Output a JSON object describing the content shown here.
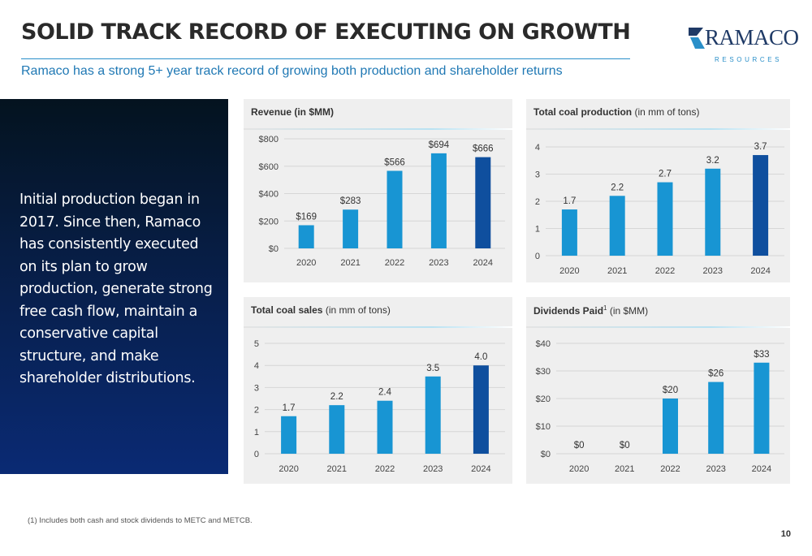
{
  "header": {
    "title": "SOLID TRACK RECORD OF EXECUTING ON GROWTH",
    "subtitle": "Ramaco has a strong 5+ year track record of growing both production and shareholder returns"
  },
  "logo": {
    "word": "RAMACO",
    "sub": "RESOURCES"
  },
  "left_panel": {
    "text": "Initial production began in 2017. Since then, Ramaco has consistently executed on its plan to grow production, generate strong free cash flow, maintain a conservative capital structure, and make shareholder distributions."
  },
  "colors": {
    "bar": "#1895d3",
    "bar_highlight": "#0f4f9e"
  },
  "chart_data": [
    {
      "id": "revenue",
      "type": "bar",
      "title_bold": "Revenue (in $MM)",
      "title_rest": "",
      "title_sup": "",
      "categories": [
        "2020",
        "2021",
        "2022",
        "2023",
        "2024"
      ],
      "values": [
        169,
        283,
        566,
        694,
        666
      ],
      "value_labels": [
        "$169",
        "$283",
        "$566",
        "$694",
        "$666"
      ],
      "ylim": [
        0,
        800
      ],
      "yticks": [
        0,
        200,
        400,
        600,
        800
      ],
      "ytick_labels": [
        "$0",
        "$200",
        "$400",
        "$600",
        "$800"
      ],
      "highlight_index": 4
    },
    {
      "id": "production",
      "type": "bar",
      "title_bold": "Total coal production",
      "title_rest": " (in mm of tons)",
      "title_sup": "",
      "categories": [
        "2020",
        "2021",
        "2022",
        "2023",
        "2024"
      ],
      "values": [
        1.7,
        2.2,
        2.7,
        3.2,
        3.7
      ],
      "value_labels": [
        "1.7",
        "2.2",
        "2.7",
        "3.2",
        "3.7"
      ],
      "ylim": [
        0,
        4
      ],
      "yticks": [
        0,
        1,
        2,
        3,
        4
      ],
      "ytick_labels": [
        "0",
        "1",
        "2",
        "3",
        "4"
      ],
      "highlight_index": 4
    },
    {
      "id": "sales",
      "type": "bar",
      "title_bold": "Total coal sales",
      "title_rest": " (in mm of tons)",
      "title_sup": "",
      "categories": [
        "2020",
        "2021",
        "2022",
        "2023",
        "2024"
      ],
      "values": [
        1.7,
        2.2,
        2.4,
        3.5,
        4.0
      ],
      "value_labels": [
        "1.7",
        "2.2",
        "2.4",
        "3.5",
        "4.0"
      ],
      "ylim": [
        0,
        5
      ],
      "yticks": [
        0,
        1,
        2,
        3,
        4,
        5
      ],
      "ytick_labels": [
        "0",
        "1",
        "2",
        "3",
        "4",
        "5"
      ],
      "highlight_index": 4
    },
    {
      "id": "dividends",
      "type": "bar",
      "title_bold": "Dividends Paid",
      "title_rest": " (in $MM)",
      "title_sup": "1",
      "categories": [
        "2020",
        "2021",
        "2022",
        "2023",
        "2024"
      ],
      "values": [
        0,
        0,
        20,
        26,
        33
      ],
      "value_labels": [
        "$0",
        "$0",
        "$20",
        "$26",
        "$33"
      ],
      "ylim": [
        0,
        40
      ],
      "yticks": [
        0,
        10,
        20,
        30,
        40
      ],
      "ytick_labels": [
        "$0",
        "$10",
        "$20",
        "$30",
        "$40"
      ],
      "highlight_index": -1
    }
  ],
  "footnote": "(1)   Includes both cash and stock dividends to METC and METCB.",
  "page_number": "10"
}
